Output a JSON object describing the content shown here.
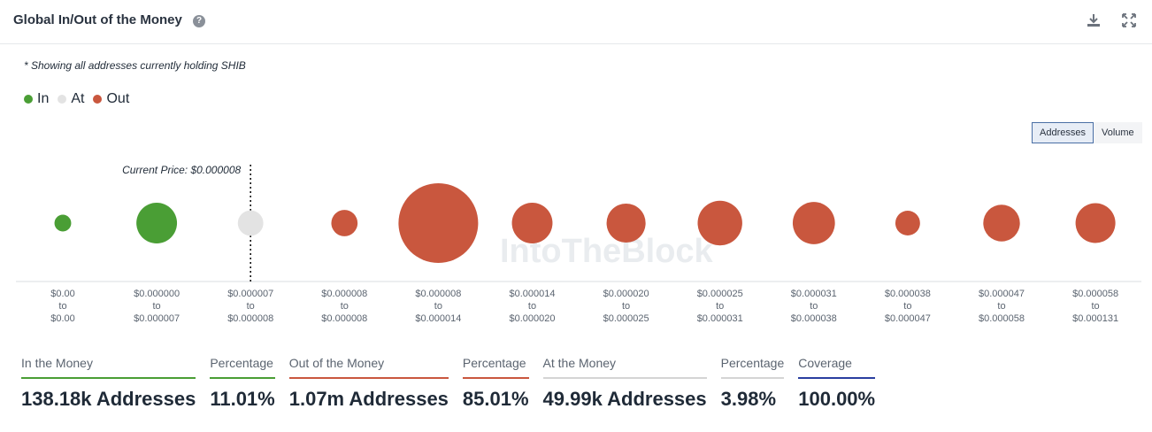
{
  "header": {
    "title": "Global In/Out of the Money",
    "help_glyph": "?"
  },
  "note": "* Showing all addresses currently holding SHIB",
  "legend": [
    {
      "label": "In",
      "color": "#4a9e35"
    },
    {
      "label": "At",
      "color": "#e3e3e3"
    },
    {
      "label": "Out",
      "color": "#c9573e"
    }
  ],
  "toggle": {
    "addresses_label": "Addresses",
    "volume_label": "Volume",
    "selected": "Addresses"
  },
  "watermark": "IntoTheBlock",
  "chart_data": {
    "type": "scatter",
    "description_of_encoding": "bubble size encodes relative address count per price bucket",
    "current_price_label": "Current Price: $0.000008",
    "current_price_bucket_index": 2,
    "buckets": [
      {
        "from": "$0.00",
        "to": "$0.00",
        "status": "In",
        "relative_size": 0.21
      },
      {
        "from": "$0.000000",
        "to": "$0.000007",
        "status": "In",
        "relative_size": 0.51
      },
      {
        "from": "$0.000007",
        "to": "$0.000008",
        "status": "At",
        "relative_size": 0.32
      },
      {
        "from": "$0.000008",
        "to": "$0.000008",
        "status": "Out",
        "relative_size": 0.33
      },
      {
        "from": "$0.000008",
        "to": "$0.000014",
        "status": "Out",
        "relative_size": 1.0
      },
      {
        "from": "$0.000014",
        "to": "$0.000020",
        "status": "Out",
        "relative_size": 0.51
      },
      {
        "from": "$0.000020",
        "to": "$0.000025",
        "status": "Out",
        "relative_size": 0.49
      },
      {
        "from": "$0.000025",
        "to": "$0.000031",
        "status": "Out",
        "relative_size": 0.56
      },
      {
        "from": "$0.000031",
        "to": "$0.000038",
        "status": "Out",
        "relative_size": 0.53
      },
      {
        "from": "$0.000038",
        "to": "$0.000047",
        "status": "Out",
        "relative_size": 0.31
      },
      {
        "from": "$0.000047",
        "to": "$0.000058",
        "status": "Out",
        "relative_size": 0.46
      },
      {
        "from": "$0.000058",
        "to": "$0.000131",
        "status": "Out",
        "relative_size": 0.5
      }
    ],
    "range_connector": "to"
  },
  "stats": [
    {
      "label": "In the Money",
      "value": "138.18k Addresses",
      "color": "#4a9e35"
    },
    {
      "label": "Percentage",
      "value": "11.01%",
      "color": "#4a9e35"
    },
    {
      "label": "Out of the Money",
      "value": "1.07m Addresses",
      "color": "#c9573e"
    },
    {
      "label": "Percentage",
      "value": "85.01%",
      "color": "#c9573e"
    },
    {
      "label": "At the Money",
      "value": "49.99k Addresses",
      "color": "#d4d4d4"
    },
    {
      "label": "Percentage",
      "value": "3.98%",
      "color": "#d4d4d4"
    },
    {
      "label": "Coverage",
      "value": "100.00%",
      "color": "#2a3fa0"
    }
  ]
}
